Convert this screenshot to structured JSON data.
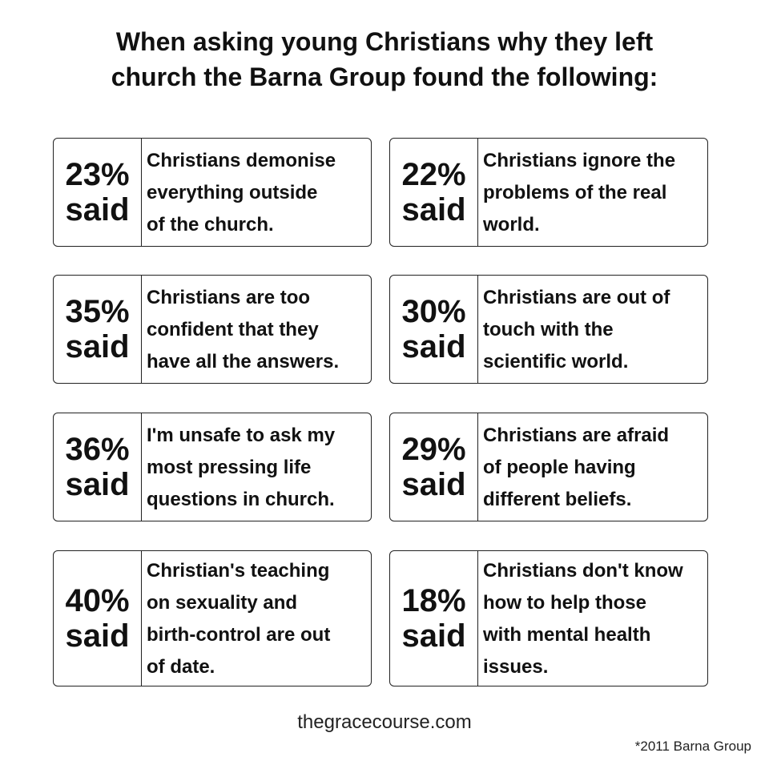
{
  "title": {
    "line1": "When asking young Christians why they left",
    "line2": "church the Barna Group found the following:"
  },
  "cards": [
    {
      "percent": "23%",
      "said": "said",
      "lines": [
        "Christians demonise",
        "everything outside",
        "of the church."
      ]
    },
    {
      "percent": "22%",
      "said": "said",
      "lines": [
        "Christians ignore the",
        "problems of the real",
        "world."
      ]
    },
    {
      "percent": "35%",
      "said": "said",
      "lines": [
        "Christians are too",
        "confident that they",
        "have all the answers."
      ]
    },
    {
      "percent": "30%",
      "said": "said",
      "lines": [
        "Christians are out of",
        "touch with the",
        "scientific world."
      ]
    },
    {
      "percent": "36%",
      "said": "said",
      "lines": [
        "I'm unsafe to ask my",
        "most pressing life",
        "questions in church."
      ]
    },
    {
      "percent": "29%",
      "said": "said",
      "lines": [
        "Christians are afraid",
        "of people having",
        "different beliefs."
      ]
    },
    {
      "percent": "40%",
      "said": "said",
      "lines": [
        "Christian's teaching",
        "on sexuality and",
        "birth-control are out",
        "of date."
      ]
    },
    {
      "percent": "18%",
      "said": "said",
      "lines": [
        "Christians don't know",
        "how to help those",
        "with mental health",
        "issues."
      ]
    }
  ],
  "footer": {
    "site": "thegracecourse.com",
    "credit": "*2011 Barna Group"
  }
}
